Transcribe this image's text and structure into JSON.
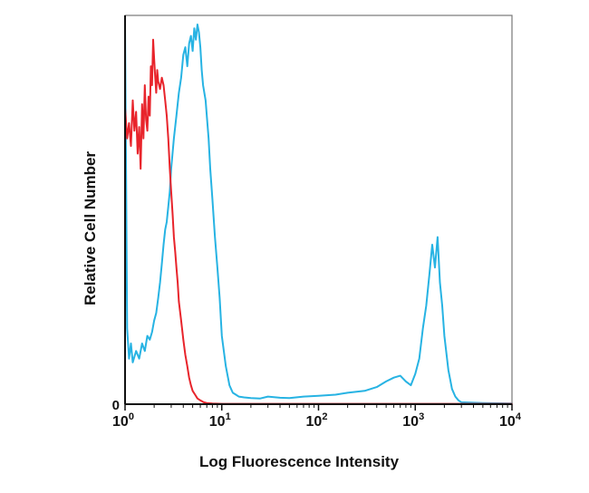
{
  "chart_data": {
    "type": "line",
    "title": "",
    "xlabel": "Log Fluorescence Intensity",
    "ylabel": "Relative Cell Number",
    "x_scale": "log",
    "xlim": [
      1,
      10000
    ],
    "ylim": [
      0,
      100
    ],
    "x_ticks": [
      {
        "value": 1,
        "base": "10",
        "exp": "0"
      },
      {
        "value": 10,
        "base": "10",
        "exp": "1"
      },
      {
        "value": 100,
        "base": "10",
        "exp": "2"
      },
      {
        "value": 1000,
        "base": "10",
        "exp": "3"
      },
      {
        "value": 10000,
        "base": "10",
        "exp": "4"
      }
    ],
    "y_ticks": [
      {
        "value": 0,
        "label": "0"
      }
    ],
    "grid": false,
    "legend": "none",
    "series": [
      {
        "color": "#e8242b",
        "x": [
          1.0,
          1.05,
          1.1,
          1.15,
          1.2,
          1.25,
          1.3,
          1.35,
          1.4,
          1.45,
          1.5,
          1.55,
          1.6,
          1.65,
          1.7,
          1.75,
          1.8,
          1.85,
          1.9,
          1.95,
          2.0,
          2.05,
          2.1,
          2.15,
          2.2,
          2.3,
          2.4,
          2.5,
          2.6,
          2.7,
          2.8,
          2.9,
          3.0,
          3.1,
          3.2,
          3.3,
          3.4,
          3.5,
          3.6,
          3.8,
          4.0,
          4.2,
          4.4,
          4.6,
          4.8,
          5.0,
          5.3,
          5.6,
          6.0,
          6.5,
          7.0,
          8.0,
          10.0,
          20.0,
          50.0,
          100.0,
          300.0,
          1000.0,
          3000.0,
          10000.0
        ],
        "y": [
          78,
          70,
          74,
          68,
          80,
          72,
          77,
          66,
          73,
          62,
          79,
          70,
          84,
          75,
          72,
          81,
          76,
          89,
          84,
          96,
          91,
          86,
          82,
          88,
          85,
          83,
          86,
          84,
          80,
          76,
          70,
          62,
          56,
          50,
          44,
          40,
          36,
          32,
          27,
          22,
          17,
          13,
          10,
          7,
          5,
          3.5,
          2.5,
          1.5,
          1.0,
          0.5,
          0.3,
          0.2,
          0.1,
          0.1,
          0.1,
          0.1,
          0.1,
          0.1,
          0.1,
          0.1
        ]
      },
      {
        "color": "#27b3e3",
        "x": [
          1.0,
          1.05,
          1.1,
          1.15,
          1.2,
          1.3,
          1.4,
          1.5,
          1.6,
          1.7,
          1.8,
          1.9,
          2.0,
          2.1,
          2.2,
          2.3,
          2.4,
          2.5,
          2.6,
          2.7,
          2.8,
          2.9,
          3.0,
          3.2,
          3.4,
          3.6,
          3.8,
          4.0,
          4.2,
          4.4,
          4.6,
          4.8,
          5.0,
          5.2,
          5.4,
          5.6,
          5.8,
          6.0,
          6.2,
          6.4,
          6.6,
          6.8,
          7.0,
          7.3,
          7.6,
          8.0,
          8.5,
          9.0,
          9.5,
          10.0,
          11.0,
          12.0,
          13.0,
          14.0,
          15.0,
          17.0,
          20.0,
          25.0,
          30.0,
          40.0,
          50.0,
          70.0,
          100.0,
          150.0,
          200.0,
          300.0,
          400.0,
          500.0,
          600.0,
          700.0,
          800.0,
          900.0,
          1000.0,
          1100.0,
          1200.0,
          1300.0,
          1400.0,
          1500.0,
          1600.0,
          1700.0,
          1800.0,
          1900.0,
          2000.0,
          2200.0,
          2400.0,
          2600.0,
          2800.0,
          3000.0,
          5000.0,
          10000.0
        ],
        "y": [
          100,
          20,
          12,
          16,
          11,
          14,
          12,
          16,
          14,
          18,
          17,
          19,
          22,
          24,
          28,
          32,
          37,
          42,
          46,
          48,
          52,
          56,
          62,
          70,
          76,
          82,
          86,
          92,
          94,
          89,
          95,
          97,
          93,
          99,
          96,
          100,
          98,
          94,
          88,
          84,
          82,
          80,
          76,
          70,
          62,
          54,
          44,
          36,
          28,
          18,
          10,
          5,
          3,
          2.5,
          2,
          1.8,
          1.6,
          1.5,
          2,
          1.7,
          1.6,
          2,
          2.2,
          2.5,
          3,
          3.5,
          4.5,
          6,
          7,
          7.5,
          6,
          5,
          8,
          12,
          20,
          26,
          34,
          42,
          36,
          44,
          32,
          26,
          18,
          9,
          4,
          2,
          1,
          0.5,
          0.3,
          0.2
        ]
      }
    ]
  }
}
